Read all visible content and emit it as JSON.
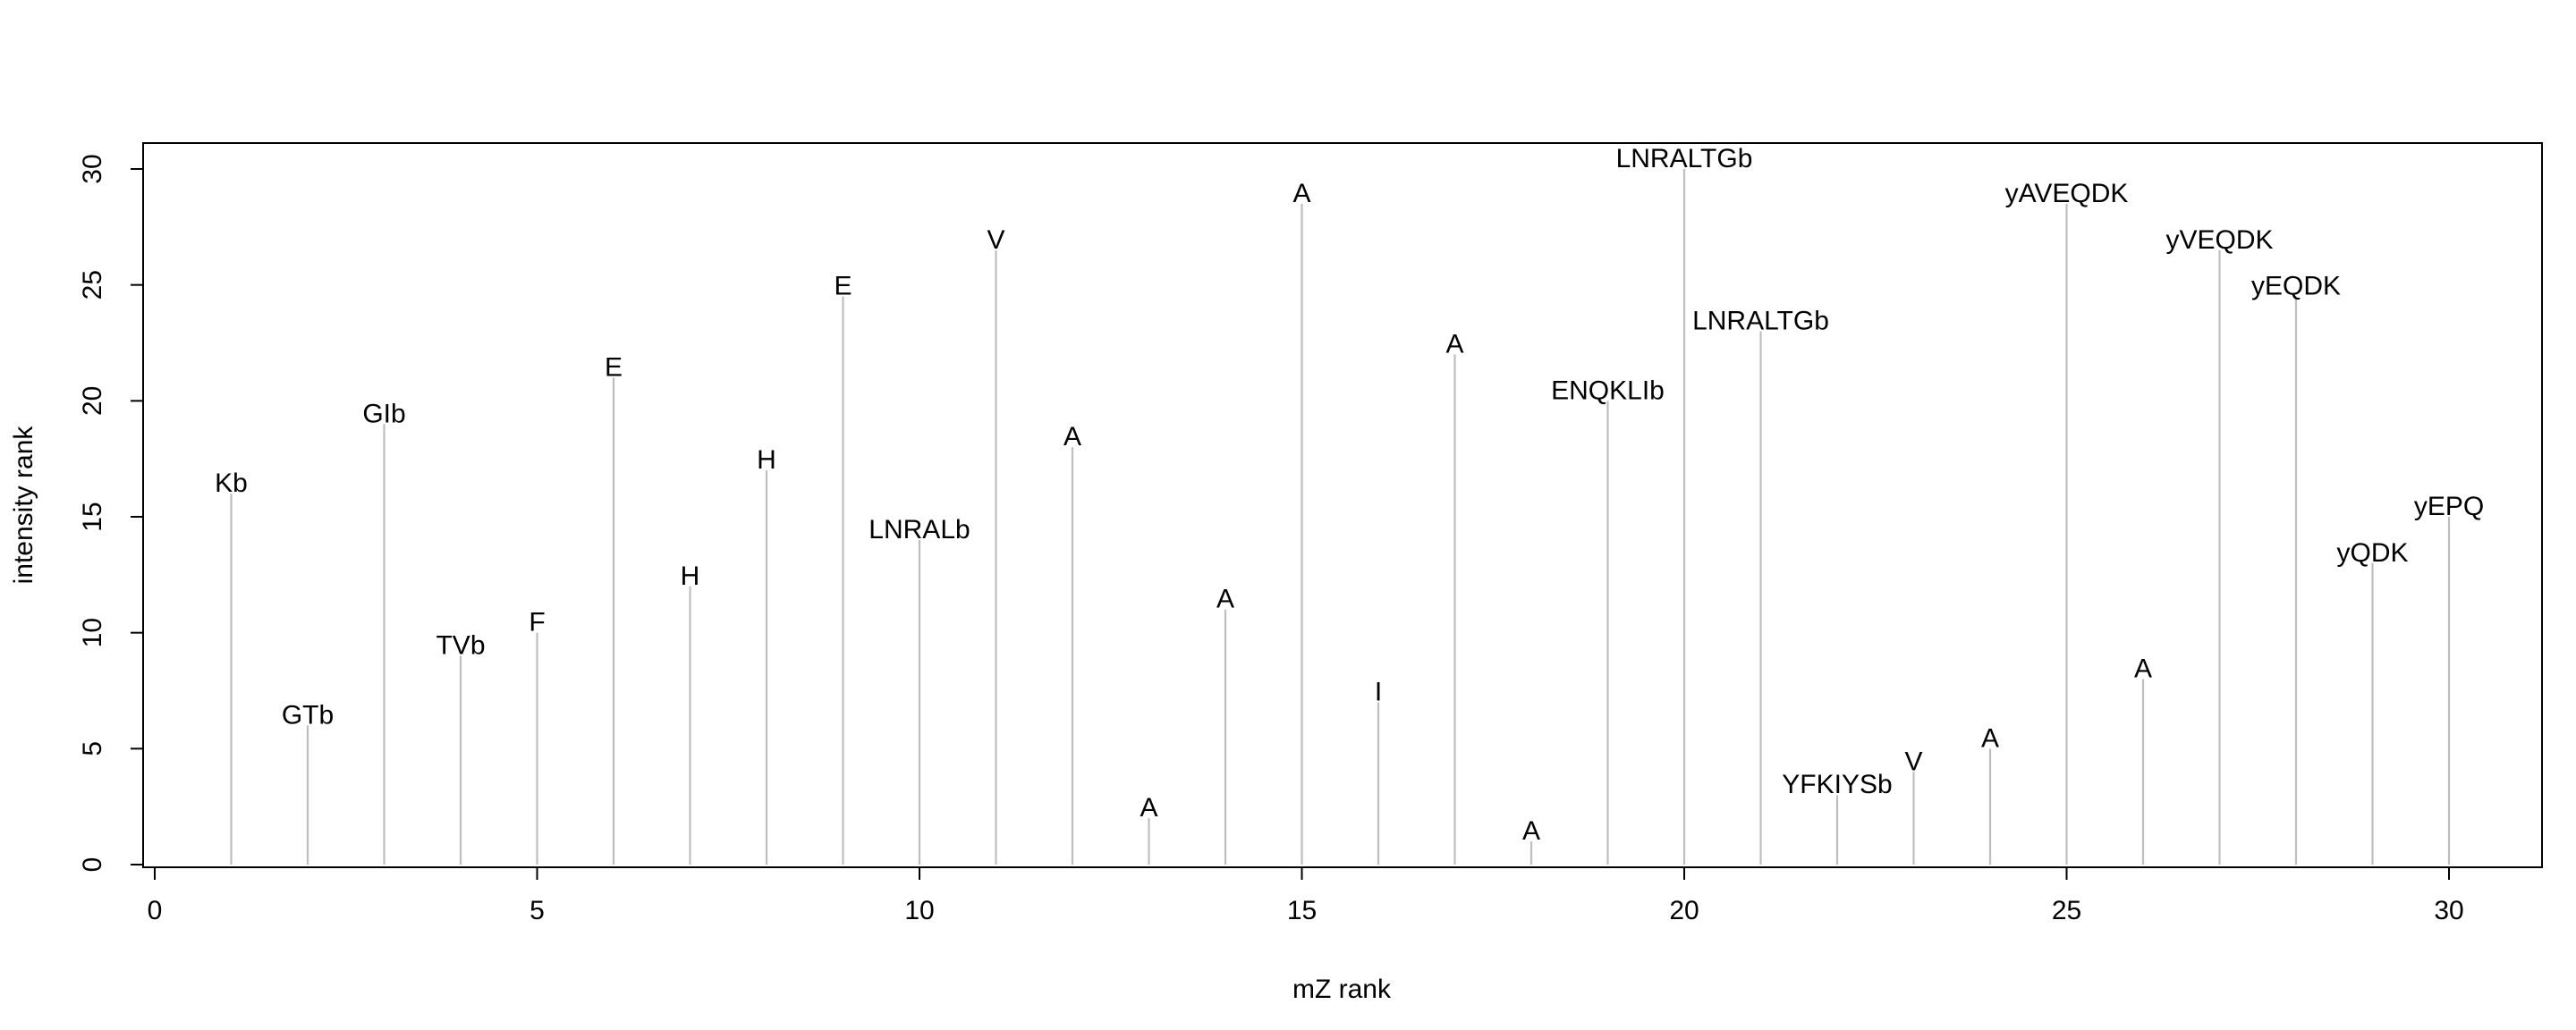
{
  "chart_data": {
    "type": "bar",
    "title": "",
    "xlabel": "mZ rank",
    "ylabel": "intensity rank",
    "xlim": [
      0,
      30
    ],
    "ylim": [
      0,
      30
    ],
    "xticks": [
      0,
      5,
      10,
      15,
      20,
      25,
      30
    ],
    "yticks": [
      0,
      5,
      10,
      15,
      20,
      25,
      30
    ],
    "grid": false,
    "legend": "none",
    "colors": {
      "stem": "#bebebe",
      "frame": "#000000",
      "text": "#000000"
    },
    "points": [
      {
        "x": 1,
        "y": 16,
        "label": "Kb"
      },
      {
        "x": 2,
        "y": 6,
        "label": "GTb"
      },
      {
        "x": 3,
        "y": 19,
        "label": "GIb"
      },
      {
        "x": 4,
        "y": 9,
        "label": "TVb"
      },
      {
        "x": 5,
        "y": 10,
        "label": "F"
      },
      {
        "x": 6,
        "y": 21,
        "label": "E"
      },
      {
        "x": 7,
        "y": 12,
        "label": "H"
      },
      {
        "x": 8,
        "y": 17,
        "label": "H"
      },
      {
        "x": 9,
        "y": 24.5,
        "label": "E"
      },
      {
        "x": 10,
        "y": 14,
        "label": "LNRALb"
      },
      {
        "x": 11,
        "y": 26.5,
        "label": "V"
      },
      {
        "x": 12,
        "y": 18,
        "label": "A"
      },
      {
        "x": 13,
        "y": 2,
        "label": "A"
      },
      {
        "x": 14,
        "y": 11,
        "label": "A"
      },
      {
        "x": 15,
        "y": 28.5,
        "label": "A"
      },
      {
        "x": 16,
        "y": 7,
        "label": "I"
      },
      {
        "x": 17,
        "y": 22,
        "label": "A"
      },
      {
        "x": 18,
        "y": 1,
        "label": "A"
      },
      {
        "x": 19,
        "y": 20,
        "label": "ENQKLIb"
      },
      {
        "x": 20,
        "y": 30,
        "label": "LNRALTGb"
      },
      {
        "x": 21,
        "y": 23,
        "label": "LNRALTGb"
      },
      {
        "x": 22,
        "y": 3,
        "label": "YFKIYSb"
      },
      {
        "x": 23,
        "y": 4,
        "label": "V"
      },
      {
        "x": 24,
        "y": 5,
        "label": "A"
      },
      {
        "x": 25,
        "y": 28.5,
        "label": "yAVEQDK"
      },
      {
        "x": 26,
        "y": 8,
        "label": "A"
      },
      {
        "x": 27,
        "y": 26.5,
        "label": "yVEQDK"
      },
      {
        "x": 28,
        "y": 24.5,
        "label": "yEQDK"
      },
      {
        "x": 29,
        "y": 13,
        "label": "yQDK"
      },
      {
        "x": 30,
        "y": 15,
        "label": "yEPQ"
      }
    ]
  }
}
